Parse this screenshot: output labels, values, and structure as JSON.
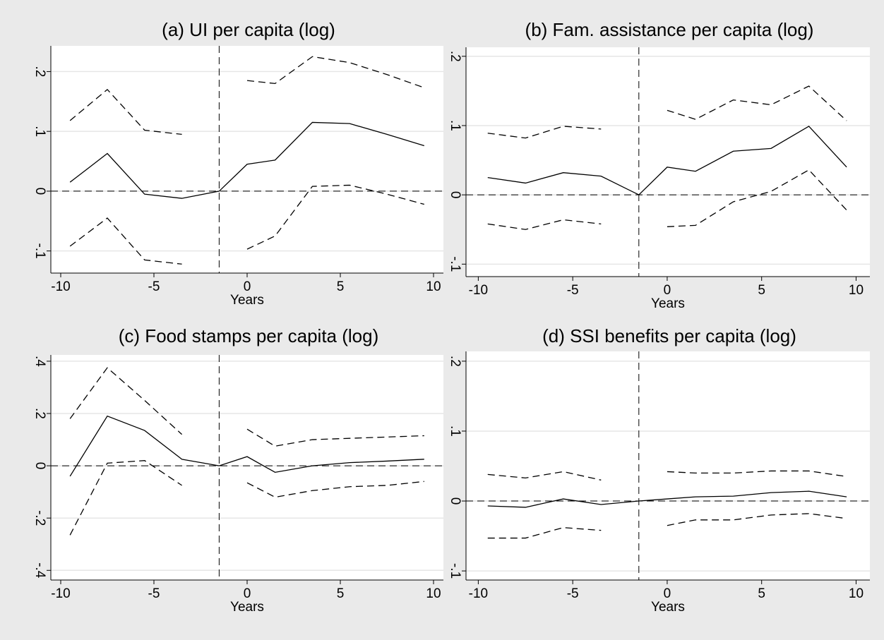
{
  "chart_data": [
    {
      "type": "line",
      "title": "(a) UI per capita (log)",
      "xlabel": "Years",
      "x": [
        -9.5,
        -7.5,
        -5.5,
        -3.5,
        -1.5,
        0,
        1.5,
        3.5,
        5.5,
        7.5,
        9.5
      ],
      "series": [
        {
          "style": "solid",
          "color": "#000000",
          "values": [
            0.015,
            0.063,
            -0.005,
            -0.012,
            0,
            0.045,
            0.052,
            0.115,
            0.113,
            0.095,
            0.076
          ]
        },
        {
          "style": "dashed",
          "color": "#000000",
          "values": [
            0.118,
            0.17,
            0.102,
            0.095,
            null,
            0.185,
            0.18,
            0.225,
            0.215,
            0.195,
            0.173
          ]
        },
        {
          "style": "dashed",
          "color": "#000000",
          "values": [
            -0.092,
            -0.045,
            -0.115,
            -0.122,
            null,
            -0.097,
            -0.075,
            0.008,
            0.01,
            -0.005,
            -0.022
          ]
        }
      ],
      "xlim": [
        -10.53,
        10.53
      ],
      "ylim": [
        -0.137,
        0.243
      ],
      "xticks": [
        -10,
        -5,
        0,
        5,
        10
      ],
      "yticks": [
        {
          "value": -0.1,
          "label": "-.1"
        },
        0,
        {
          "value": 0.1,
          "label": ".1"
        },
        {
          "value": 0.2,
          "label": ".2"
        }
      ],
      "grid": true,
      "hline": 0,
      "vline": -1.5
    },
    {
      "type": "line",
      "title": "(b) Fam. assistance per capita (log)",
      "xlabel": "Years",
      "x": [
        -9.5,
        -7.5,
        -5.5,
        -3.5,
        -1.5,
        0,
        1.5,
        3.5,
        5.5,
        7.5,
        9.5
      ],
      "series": [
        {
          "style": "solid",
          "color": "#000000",
          "values": [
            0.025,
            0.017,
            0.032,
            0.027,
            0,
            0.04,
            0.034,
            0.063,
            0.067,
            0.099,
            0.04
          ]
        },
        {
          "style": "dashed",
          "color": "#000000",
          "values": [
            0.089,
            0.082,
            0.099,
            0.095,
            null,
            0.122,
            0.109,
            0.137,
            0.13,
            0.157,
            0.107
          ]
        },
        {
          "style": "dashed",
          "color": "#000000",
          "values": [
            -0.042,
            -0.05,
            -0.036,
            -0.042,
            null,
            -0.046,
            -0.044,
            -0.01,
            0.005,
            0.036,
            -0.022
          ]
        }
      ],
      "xlim": [
        -10.65,
        10.73
      ],
      "ylim": [
        -0.118,
        0.213
      ],
      "xticks": [
        -10,
        -5,
        0,
        5,
        10
      ],
      "yticks": [
        {
          "value": -0.1,
          "label": "-.1"
        },
        0,
        {
          "value": 0.1,
          "label": ".1"
        },
        {
          "value": 0.2,
          "label": ".2"
        }
      ],
      "grid": true,
      "hline": 0,
      "vline": -1.5
    },
    {
      "type": "line",
      "title": "(c) Food stamps per capita (log)",
      "xlabel": "Years",
      "x": [
        -9.5,
        -7.5,
        -5.5,
        -3.5,
        -1.5,
        0,
        1.5,
        3.5,
        5.5,
        7.5,
        9.5
      ],
      "series": [
        {
          "style": "solid",
          "color": "#000000",
          "values": [
            -0.04,
            0.19,
            0.135,
            0.025,
            0,
            0.035,
            -0.025,
            0,
            0.012,
            0.018,
            0.025
          ]
        },
        {
          "style": "dashed",
          "color": "#000000",
          "values": [
            0.18,
            0.375,
            0.25,
            0.12,
            null,
            0.14,
            0.075,
            0.1,
            0.105,
            0.11,
            0.115
          ]
        },
        {
          "style": "dashed",
          "color": "#000000",
          "values": [
            -0.265,
            0.01,
            0.02,
            -0.075,
            null,
            -0.065,
            -0.12,
            -0.095,
            -0.08,
            -0.075,
            -0.06
          ]
        }
      ],
      "xlim": [
        -10.53,
        10.53
      ],
      "ylim": [
        -0.437,
        0.424
      ],
      "xticks": [
        -10,
        -5,
        0,
        5,
        10
      ],
      "yticks": [
        {
          "value": -0.4,
          "label": "-.4"
        },
        {
          "value": -0.2,
          "label": "-.2"
        },
        0,
        {
          "value": 0.2,
          "label": ".2"
        },
        {
          "value": 0.4,
          "label": ".4"
        }
      ],
      "grid": true,
      "hline": 0,
      "vline": -1.5
    },
    {
      "type": "line",
      "title": "(d) SSI benefits per capita (log)",
      "xlabel": "Years",
      "x": [
        -9.5,
        -7.5,
        -5.5,
        -3.5,
        -1.5,
        0,
        1.5,
        3.5,
        5.5,
        7.5,
        9.5
      ],
      "series": [
        {
          "style": "solid",
          "color": "#000000",
          "values": [
            -0.007,
            -0.009,
            0.003,
            -0.005,
            0,
            0.003,
            0.006,
            0.007,
            0.012,
            0.014,
            0.006
          ]
        },
        {
          "style": "dashed",
          "color": "#000000",
          "values": [
            0.038,
            0.033,
            0.042,
            0.03,
            null,
            0.042,
            0.04,
            0.04,
            0.043,
            0.043,
            0.035
          ]
        },
        {
          "style": "dashed",
          "color": "#000000",
          "values": [
            -0.053,
            -0.053,
            -0.038,
            -0.042,
            null,
            -0.035,
            -0.027,
            -0.027,
            -0.02,
            -0.018,
            -0.025
          ]
        }
      ],
      "xlim": [
        -10.65,
        10.73
      ],
      "ylim": [
        -0.113,
        0.214
      ],
      "xticks": [
        -10,
        -5,
        0,
        5,
        10
      ],
      "yticks": [
        {
          "value": -0.1,
          "label": "-.1"
        },
        0,
        {
          "value": 0.1,
          "label": ".1"
        },
        {
          "value": 0.2,
          "label": ".2"
        }
      ],
      "grid": true,
      "hline": 0,
      "vline": -1.5
    }
  ]
}
